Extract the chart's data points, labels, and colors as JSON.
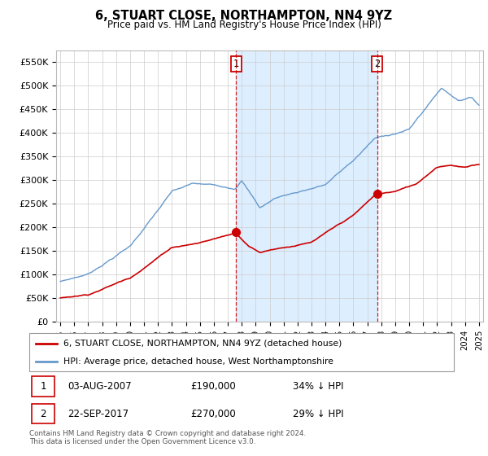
{
  "title": "6, STUART CLOSE, NORTHAMPTON, NN4 9YZ",
  "subtitle": "Price paid vs. HM Land Registry's House Price Index (HPI)",
  "ylabel_ticks": [
    "£0",
    "£50K",
    "£100K",
    "£150K",
    "£200K",
    "£250K",
    "£300K",
    "£350K",
    "£400K",
    "£450K",
    "£500K",
    "£550K"
  ],
  "ytick_values": [
    0,
    50000,
    100000,
    150000,
    200000,
    250000,
    300000,
    350000,
    400000,
    450000,
    500000,
    550000
  ],
  "ylim": [
    0,
    575000
  ],
  "hpi_color": "#6699cc",
  "price_color": "#cc0000",
  "vline_color": "#cc0000",
  "shade_color": "#ddeeff",
  "annotation1": {
    "label": "1",
    "x": 2007.6
  },
  "annotation2": {
    "label": "2",
    "x": 2017.72
  },
  "sale1_price": 190000,
  "sale2_price": 270000,
  "legend_line1": "6, STUART CLOSE, NORTHAMPTON, NN4 9YZ (detached house)",
  "legend_line2": "HPI: Average price, detached house, West Northamptonshire",
  "table_row1": [
    "1",
    "03-AUG-2007",
    "£190,000",
    "34% ↓ HPI"
  ],
  "table_row2": [
    "2",
    "22-SEP-2017",
    "£270,000",
    "29% ↓ HPI"
  ],
  "footnote": "Contains HM Land Registry data © Crown copyright and database right 2024.\nThis data is licensed under the Open Government Licence v3.0.",
  "background_color": "#ffffff",
  "grid_color": "#cccccc",
  "xlim_left": 1994.7,
  "xlim_right": 2025.3
}
